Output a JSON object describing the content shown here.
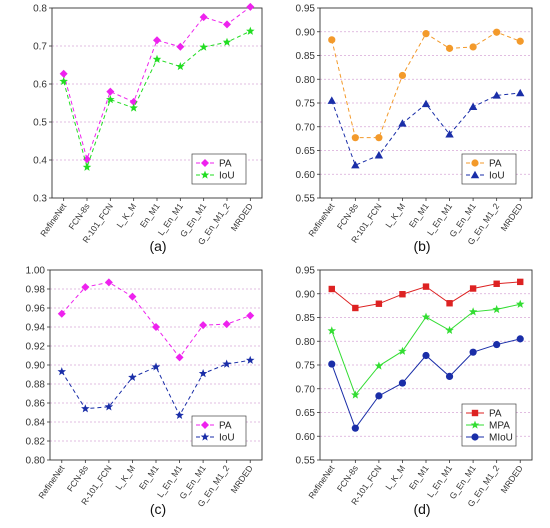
{
  "chart_data": [
    {
      "type": "line",
      "panel_label": "(a)",
      "categories": [
        "RefineNet",
        "FCN-8s",
        "R-101_FCN",
        "L_K_M",
        "En_M1",
        "L_En_M1",
        "G_En_M1",
        "G_En_M1_2",
        "MRDED"
      ],
      "ylim": [
        0.3,
        0.8
      ],
      "yticks": [
        "0.3",
        "0.4",
        "0.5",
        "0.6",
        "0.7",
        "0.8"
      ],
      "grid": "horizontal-dashed",
      "legend_position": "bottom-right",
      "series": [
        {
          "name": "PA",
          "color": "#ee22ee",
          "marker": "diamond",
          "dash": "4,3",
          "values": [
            0.627,
            0.402,
            0.58,
            0.553,
            0.715,
            0.698,
            0.776,
            0.757,
            0.803
          ]
        },
        {
          "name": "IoU",
          "color": "#22dd22",
          "marker": "star",
          "dash": "4,3",
          "values": [
            0.607,
            0.381,
            0.559,
            0.537,
            0.665,
            0.646,
            0.697,
            0.71,
            0.739
          ]
        }
      ]
    },
    {
      "type": "line",
      "panel_label": "(b)",
      "categories": [
        "RefineNet",
        "FCN-8s",
        "R-101_FCN",
        "L_K_M",
        "En_M1",
        "L_En_M1",
        "G_En_M1",
        "G_En_M1_2",
        "MRDED"
      ],
      "ylim": [
        0.55,
        0.95
      ],
      "yticks": [
        "0.55",
        "0.60",
        "0.65",
        "0.70",
        "0.75",
        "0.80",
        "0.85",
        "0.90",
        "0.95"
      ],
      "grid": "horizontal-dashed",
      "legend_position": "bottom-right",
      "series": [
        {
          "name": "PA",
          "color": "#f39a2b",
          "marker": "circle",
          "dash": "4,3",
          "values": [
            0.883,
            0.677,
            0.677,
            0.808,
            0.896,
            0.865,
            0.868,
            0.899,
            0.88
          ]
        },
        {
          "name": "IoU",
          "color": "#1a2ea8",
          "marker": "triangle",
          "dash": "4,3",
          "values": [
            0.755,
            0.619,
            0.64,
            0.707,
            0.748,
            0.684,
            0.742,
            0.766,
            0.771
          ]
        }
      ]
    },
    {
      "type": "line",
      "panel_label": "(c)",
      "categories": [
        "RefineNet",
        "FCN-8s",
        "R-101_FCN",
        "L_K_M",
        "En_M1",
        "L_En_M1",
        "G_En_M1",
        "G_En_M1_2",
        "MRDED"
      ],
      "ylim": [
        0.8,
        1.0
      ],
      "yticks": [
        "0.80",
        "0.82",
        "0.84",
        "0.86",
        "0.88",
        "0.90",
        "0.92",
        "0.94",
        "0.96",
        "0.98",
        "1.00"
      ],
      "grid": "horizontal-dashed",
      "legend_position": "bottom-right",
      "series": [
        {
          "name": "PA",
          "color": "#ee22ee",
          "marker": "diamond",
          "dash": "4,3",
          "values": [
            0.954,
            0.982,
            0.987,
            0.972,
            0.94,
            0.908,
            0.942,
            0.943,
            0.952
          ]
        },
        {
          "name": "IoU",
          "color": "#1a2ea8",
          "marker": "star",
          "dash": "4,3",
          "values": [
            0.893,
            0.854,
            0.856,
            0.887,
            0.898,
            0.847,
            0.891,
            0.901,
            0.905
          ]
        }
      ]
    },
    {
      "type": "line",
      "panel_label": "(d)",
      "categories": [
        "RefineNet",
        "FCN-8s",
        "R-101_FCN",
        "L_K_M",
        "En_M1",
        "L_En_M1",
        "G_En_M1",
        "G_En_M1_2",
        "MRDED"
      ],
      "ylim": [
        0.55,
        0.95
      ],
      "yticks": [
        "0.55",
        "0.60",
        "0.65",
        "0.70",
        "0.75",
        "0.80",
        "0.85",
        "0.90",
        "0.95"
      ],
      "grid": "horizontal-dashed",
      "legend_position": "bottom-right",
      "series": [
        {
          "name": "PA",
          "color": "#dd2222",
          "marker": "square",
          "dash": "",
          "values": [
            0.91,
            0.87,
            0.879,
            0.899,
            0.915,
            0.88,
            0.911,
            0.921,
            0.925
          ]
        },
        {
          "name": "MPA",
          "color": "#33dd33",
          "marker": "star",
          "dash": "",
          "values": [
            0.822,
            0.687,
            0.748,
            0.779,
            0.851,
            0.823,
            0.862,
            0.867,
            0.878
          ]
        },
        {
          "name": "MIoU",
          "color": "#1a2ea8",
          "marker": "circle",
          "dash": "",
          "values": [
            0.752,
            0.617,
            0.685,
            0.712,
            0.77,
            0.726,
            0.777,
            0.793,
            0.805
          ]
        }
      ]
    }
  ]
}
